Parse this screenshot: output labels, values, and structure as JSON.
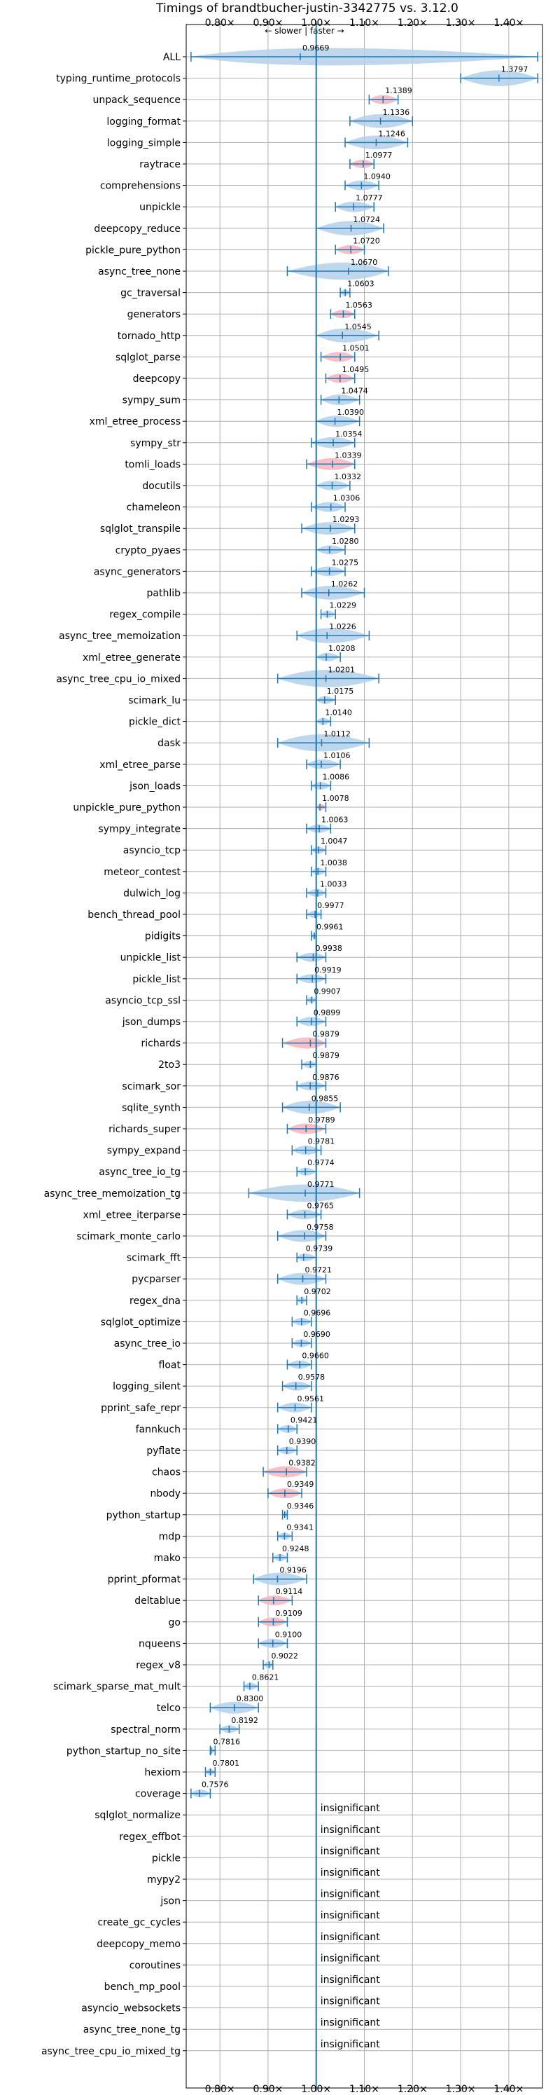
{
  "chart_data": {
    "type": "violin",
    "title": "Timings of brandtbucher-justin-3342775 vs. 3.12.0",
    "direction_label": "← slower | faster →",
    "xlim": [
      0.73,
      1.47
    ],
    "xticks": [
      0.8,
      0.9,
      1.0,
      1.1,
      1.2,
      1.3,
      1.4
    ],
    "xtick_labels": [
      "0.80×",
      "0.90×",
      "1.00×",
      "1.10×",
      "1.20×",
      "1.30×",
      "1.40×"
    ],
    "reference_line": 1.0,
    "grid": true,
    "insignificant_label": "insignificant",
    "colors": {
      "violin": "#b3d0ea",
      "violin_significant": "#f5b5bc",
      "marker": "#1f77b4",
      "grid": "#b0b0b0"
    },
    "benchmarks": [
      {
        "name": "ALL",
        "value": 0.9669,
        "low": 0.74,
        "high": 1.46,
        "color": "blue"
      },
      {
        "name": "typing_runtime_protocols",
        "value": 1.3797,
        "low": 1.3,
        "high": 1.46,
        "color": "blue"
      },
      {
        "name": "unpack_sequence",
        "value": 1.1389,
        "low": 1.11,
        "high": 1.17,
        "color": "red"
      },
      {
        "name": "logging_format",
        "value": 1.1336,
        "low": 1.07,
        "high": 1.2,
        "color": "blue"
      },
      {
        "name": "logging_simple",
        "value": 1.1246,
        "low": 1.06,
        "high": 1.19,
        "color": "blue"
      },
      {
        "name": "raytrace",
        "value": 1.0977,
        "low": 1.07,
        "high": 1.12,
        "color": "red"
      },
      {
        "name": "comprehensions",
        "value": 1.094,
        "low": 1.06,
        "high": 1.13,
        "color": "blue"
      },
      {
        "name": "unpickle",
        "value": 1.0777,
        "low": 1.04,
        "high": 1.12,
        "color": "blue"
      },
      {
        "name": "deepcopy_reduce",
        "value": 1.0724,
        "low": 1.0,
        "high": 1.14,
        "color": "blue"
      },
      {
        "name": "pickle_pure_python",
        "value": 1.072,
        "low": 1.04,
        "high": 1.1,
        "color": "red"
      },
      {
        "name": "async_tree_none",
        "value": 1.067,
        "low": 0.94,
        "high": 1.15,
        "color": "blue"
      },
      {
        "name": "gc_traversal",
        "value": 1.0603,
        "low": 1.05,
        "high": 1.07,
        "color": "blue"
      },
      {
        "name": "generators",
        "value": 1.0563,
        "low": 1.03,
        "high": 1.08,
        "color": "red"
      },
      {
        "name": "tornado_http",
        "value": 1.0545,
        "low": 1.0,
        "high": 1.13,
        "color": "blue"
      },
      {
        "name": "sqlglot_parse",
        "value": 1.0501,
        "low": 1.01,
        "high": 1.08,
        "color": "red"
      },
      {
        "name": "deepcopy",
        "value": 1.0495,
        "low": 1.02,
        "high": 1.08,
        "color": "red"
      },
      {
        "name": "sympy_sum",
        "value": 1.0474,
        "low": 1.01,
        "high": 1.09,
        "color": "blue"
      },
      {
        "name": "xml_etree_process",
        "value": 1.039,
        "low": 1.0,
        "high": 1.09,
        "color": "blue"
      },
      {
        "name": "sympy_str",
        "value": 1.0354,
        "low": 0.99,
        "high": 1.08,
        "color": "blue"
      },
      {
        "name": "tomli_loads",
        "value": 1.0339,
        "low": 0.98,
        "high": 1.08,
        "color": "red"
      },
      {
        "name": "docutils",
        "value": 1.0332,
        "low": 1.0,
        "high": 1.07,
        "color": "blue"
      },
      {
        "name": "chameleon",
        "value": 1.0306,
        "low": 0.99,
        "high": 1.06,
        "color": "blue"
      },
      {
        "name": "sqlglot_transpile",
        "value": 1.0293,
        "low": 0.97,
        "high": 1.08,
        "color": "blue"
      },
      {
        "name": "crypto_pyaes",
        "value": 1.028,
        "low": 1.0,
        "high": 1.06,
        "color": "blue"
      },
      {
        "name": "async_generators",
        "value": 1.0275,
        "low": 0.99,
        "high": 1.06,
        "color": "blue"
      },
      {
        "name": "pathlib",
        "value": 1.0262,
        "low": 0.97,
        "high": 1.1,
        "color": "blue"
      },
      {
        "name": "regex_compile",
        "value": 1.0229,
        "low": 1.01,
        "high": 1.04,
        "color": "blue"
      },
      {
        "name": "async_tree_memoization",
        "value": 1.0226,
        "low": 0.96,
        "high": 1.11,
        "color": "blue"
      },
      {
        "name": "xml_etree_generate",
        "value": 1.0208,
        "low": 1.0,
        "high": 1.05,
        "color": "blue"
      },
      {
        "name": "async_tree_cpu_io_mixed",
        "value": 1.0201,
        "low": 0.92,
        "high": 1.13,
        "color": "blue"
      },
      {
        "name": "scimark_lu",
        "value": 1.0175,
        "low": 1.0,
        "high": 1.04,
        "color": "blue"
      },
      {
        "name": "pickle_dict",
        "value": 1.014,
        "low": 1.0,
        "high": 1.03,
        "color": "blue"
      },
      {
        "name": "dask",
        "value": 1.0112,
        "low": 0.92,
        "high": 1.11,
        "color": "blue"
      },
      {
        "name": "xml_etree_parse",
        "value": 1.0106,
        "low": 0.98,
        "high": 1.05,
        "color": "blue"
      },
      {
        "name": "json_loads",
        "value": 1.0086,
        "low": 0.99,
        "high": 1.03,
        "color": "blue"
      },
      {
        "name": "unpickle_pure_python",
        "value": 1.0078,
        "low": 1.0,
        "high": 1.02,
        "color": "red"
      },
      {
        "name": "sympy_integrate",
        "value": 1.0063,
        "low": 0.98,
        "high": 1.03,
        "color": "blue"
      },
      {
        "name": "asyncio_tcp",
        "value": 1.0047,
        "low": 0.99,
        "high": 1.02,
        "color": "blue"
      },
      {
        "name": "meteor_contest",
        "value": 1.0038,
        "low": 0.99,
        "high": 1.02,
        "color": "blue"
      },
      {
        "name": "dulwich_log",
        "value": 1.0033,
        "low": 0.98,
        "high": 1.02,
        "color": "blue"
      },
      {
        "name": "bench_thread_pool",
        "value": 0.9977,
        "low": 0.98,
        "high": 1.01,
        "color": "blue"
      },
      {
        "name": "pidigits",
        "value": 0.9961,
        "low": 0.99,
        "high": 1.0,
        "color": "blue"
      },
      {
        "name": "unpickle_list",
        "value": 0.9938,
        "low": 0.96,
        "high": 1.02,
        "color": "blue"
      },
      {
        "name": "pickle_list",
        "value": 0.9919,
        "low": 0.96,
        "high": 1.02,
        "color": "blue"
      },
      {
        "name": "asyncio_tcp_ssl",
        "value": 0.9907,
        "low": 0.98,
        "high": 1.0,
        "color": "blue"
      },
      {
        "name": "json_dumps",
        "value": 0.9899,
        "low": 0.96,
        "high": 1.02,
        "color": "blue"
      },
      {
        "name": "richards",
        "value": 0.9879,
        "low": 0.93,
        "high": 1.02,
        "color": "red"
      },
      {
        "name": "2to3",
        "value": 0.9879,
        "low": 0.97,
        "high": 1.0,
        "color": "blue"
      },
      {
        "name": "scimark_sor",
        "value": 0.9876,
        "low": 0.96,
        "high": 1.02,
        "color": "blue"
      },
      {
        "name": "sqlite_synth",
        "value": 0.9855,
        "low": 0.93,
        "high": 1.05,
        "color": "blue"
      },
      {
        "name": "richards_super",
        "value": 0.9789,
        "low": 0.94,
        "high": 1.02,
        "color": "red"
      },
      {
        "name": "sympy_expand",
        "value": 0.9781,
        "low": 0.95,
        "high": 1.01,
        "color": "blue"
      },
      {
        "name": "async_tree_io_tg",
        "value": 0.9774,
        "low": 0.96,
        "high": 1.0,
        "color": "blue"
      },
      {
        "name": "async_tree_memoization_tg",
        "value": 0.9771,
        "low": 0.86,
        "high": 1.09,
        "color": "blue"
      },
      {
        "name": "xml_etree_iterparse",
        "value": 0.9765,
        "low": 0.94,
        "high": 1.01,
        "color": "blue"
      },
      {
        "name": "scimark_monte_carlo",
        "value": 0.9758,
        "low": 0.92,
        "high": 1.02,
        "color": "blue"
      },
      {
        "name": "scimark_fft",
        "value": 0.9739,
        "low": 0.96,
        "high": 1.0,
        "color": "blue"
      },
      {
        "name": "pycparser",
        "value": 0.9721,
        "low": 0.92,
        "high": 1.02,
        "color": "blue"
      },
      {
        "name": "regex_dna",
        "value": 0.9702,
        "low": 0.96,
        "high": 0.98,
        "color": "blue"
      },
      {
        "name": "sqlglot_optimize",
        "value": 0.9696,
        "low": 0.95,
        "high": 0.99,
        "color": "blue"
      },
      {
        "name": "async_tree_io",
        "value": 0.969,
        "low": 0.95,
        "high": 0.99,
        "color": "blue"
      },
      {
        "name": "float",
        "value": 0.966,
        "low": 0.94,
        "high": 0.99,
        "color": "blue"
      },
      {
        "name": "logging_silent",
        "value": 0.9578,
        "low": 0.93,
        "high": 0.99,
        "color": "blue"
      },
      {
        "name": "pprint_safe_repr",
        "value": 0.9561,
        "low": 0.92,
        "high": 0.99,
        "color": "blue"
      },
      {
        "name": "fannkuch",
        "value": 0.9421,
        "low": 0.92,
        "high": 0.96,
        "color": "blue"
      },
      {
        "name": "pyflate",
        "value": 0.939,
        "low": 0.92,
        "high": 0.96,
        "color": "blue"
      },
      {
        "name": "chaos",
        "value": 0.9382,
        "low": 0.89,
        "high": 0.98,
        "color": "red"
      },
      {
        "name": "nbody",
        "value": 0.9349,
        "low": 0.9,
        "high": 0.97,
        "color": "red"
      },
      {
        "name": "python_startup",
        "value": 0.9346,
        "low": 0.93,
        "high": 0.94,
        "color": "blue"
      },
      {
        "name": "mdp",
        "value": 0.9341,
        "low": 0.92,
        "high": 0.95,
        "color": "blue"
      },
      {
        "name": "mako",
        "value": 0.9248,
        "low": 0.91,
        "high": 0.94,
        "color": "blue"
      },
      {
        "name": "pprint_pformat",
        "value": 0.9196,
        "low": 0.87,
        "high": 0.98,
        "color": "blue"
      },
      {
        "name": "deltablue",
        "value": 0.9114,
        "low": 0.88,
        "high": 0.95,
        "color": "red"
      },
      {
        "name": "go",
        "value": 0.9109,
        "low": 0.88,
        "high": 0.94,
        "color": "red"
      },
      {
        "name": "nqueens",
        "value": 0.91,
        "low": 0.88,
        "high": 0.94,
        "color": "blue"
      },
      {
        "name": "regex_v8",
        "value": 0.9022,
        "low": 0.89,
        "high": 0.91,
        "color": "blue"
      },
      {
        "name": "scimark_sparse_mat_mult",
        "value": 0.8621,
        "low": 0.85,
        "high": 0.88,
        "color": "blue"
      },
      {
        "name": "telco",
        "value": 0.83,
        "low": 0.78,
        "high": 0.88,
        "color": "blue"
      },
      {
        "name": "spectral_norm",
        "value": 0.8192,
        "low": 0.8,
        "high": 0.84,
        "color": "blue"
      },
      {
        "name": "python_startup_no_site",
        "value": 0.7816,
        "low": 0.78,
        "high": 0.79,
        "color": "blue"
      },
      {
        "name": "hexiom",
        "value": 0.7801,
        "low": 0.77,
        "high": 0.79,
        "color": "blue"
      },
      {
        "name": "coverage",
        "value": 0.7576,
        "low": 0.74,
        "high": 0.78,
        "color": "blue"
      },
      {
        "name": "sqlglot_normalize",
        "value": null,
        "insignificant": true
      },
      {
        "name": "regex_effbot",
        "value": null,
        "insignificant": true
      },
      {
        "name": "pickle",
        "value": null,
        "insignificant": true
      },
      {
        "name": "mypy2",
        "value": null,
        "insignificant": true
      },
      {
        "name": "json",
        "value": null,
        "insignificant": true
      },
      {
        "name": "create_gc_cycles",
        "value": null,
        "insignificant": true
      },
      {
        "name": "deepcopy_memo",
        "value": null,
        "insignificant": true
      },
      {
        "name": "coroutines",
        "value": null,
        "insignificant": true
      },
      {
        "name": "bench_mp_pool",
        "value": null,
        "insignificant": true
      },
      {
        "name": "asyncio_websockets",
        "value": null,
        "insignificant": true
      },
      {
        "name": "async_tree_none_tg",
        "value": null,
        "insignificant": true
      },
      {
        "name": "async_tree_cpu_io_mixed_tg",
        "value": null,
        "insignificant": true
      }
    ]
  }
}
